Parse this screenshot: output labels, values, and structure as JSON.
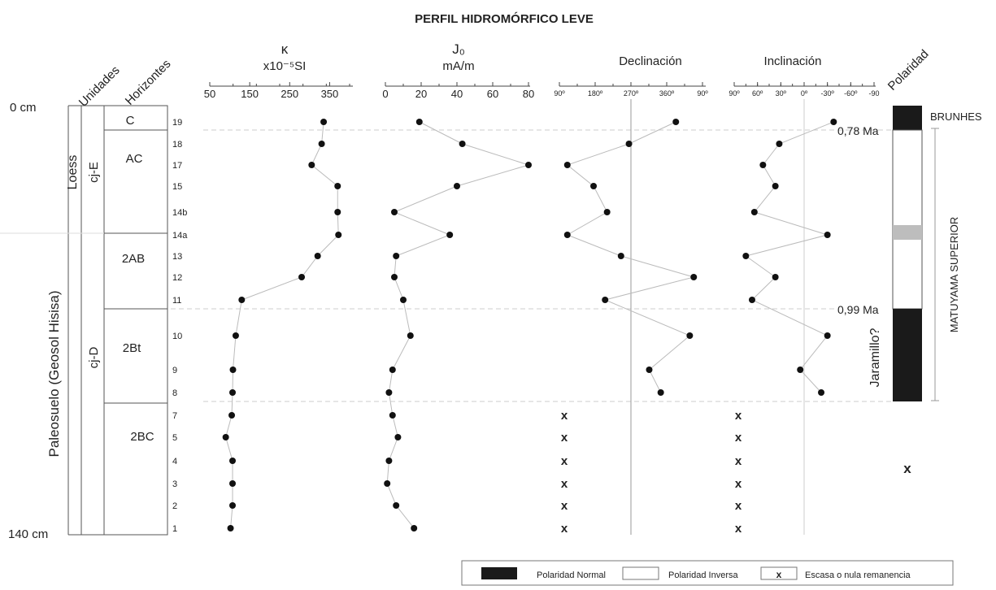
{
  "title": "PERFIL HIDROMÓRFICO LEVE",
  "column_headers": {
    "unidades": "Unidades",
    "horizontes": "Horizontes",
    "polaridad": "Polaridad"
  },
  "depth_labels": [
    "0 cm",
    "140 cm"
  ],
  "units": [
    {
      "name": "cj-E",
      "facies": "Loess"
    },
    {
      "name": "cj-D",
      "facies": "Paleosuelo (Geosol Hisisa)"
    }
  ],
  "horizons": [
    "C",
    "AC",
    "2AB",
    "2Bt",
    "2BC"
  ],
  "samples": [
    "19",
    "18",
    "17",
    "15",
    "14b",
    "14a",
    "13",
    "12",
    "11",
    "10",
    "9",
    "8",
    "7",
    "5",
    "4",
    "3",
    "2",
    "1"
  ],
  "polarity_labels": {
    "brunhes": "BRUNHES",
    "age_top": "0,78 Ma",
    "age_bottom": "0,99 Ma",
    "jaramillo": "Jaramillo?",
    "matuyama": "MATUYAMA SUPERIOR",
    "no_remanence_mark": "x"
  },
  "legend": {
    "normal": "Polaridad Normal",
    "inverse": "Polaridad Inversa",
    "mark": "x",
    "scarce": "Escasa o nula remanencia"
  },
  "colors": {
    "point": "#111111",
    "line": "#bbbbbb",
    "normal_polarity": "#1a1a1a",
    "transitional": "#bdbdbd",
    "dashed_boundary": "#cccccc"
  },
  "chart_data": [
    {
      "type": "line",
      "title_symbol": "κ",
      "title_unit": "x10⁻⁵SI",
      "tick_labels": [
        "50",
        "150",
        "250",
        "350"
      ],
      "xlim": [
        50,
        400
      ],
      "samples": [
        "19",
        "18",
        "17",
        "15",
        "14b",
        "14a",
        "13",
        "12",
        "11",
        "10",
        "9",
        "8",
        "7",
        "5",
        "4",
        "3",
        "2",
        "1"
      ],
      "values": [
        335,
        330,
        305,
        370,
        370,
        372,
        320,
        280,
        130,
        115,
        108,
        107,
        105,
        90,
        107,
        107,
        107,
        102
      ]
    },
    {
      "type": "line",
      "title_symbol": "J₀",
      "title_unit": "mA/m",
      "tick_labels": [
        "0",
        "20",
        "40",
        "60",
        "80"
      ],
      "xlim": [
        0,
        80
      ],
      "samples": [
        "19",
        "18",
        "17",
        "15",
        "14b",
        "14a",
        "13",
        "12",
        "11",
        "10",
        "9",
        "8",
        "7",
        "5",
        "4",
        "3",
        "2",
        "1"
      ],
      "values": [
        19,
        43,
        80,
        40,
        5,
        36,
        6,
        5,
        10,
        14,
        4,
        2,
        4,
        7,
        2,
        1,
        6,
        16
      ]
    },
    {
      "type": "scatter",
      "title": "Declinación",
      "tick_labels": [
        "90º",
        "180º",
        "270º",
        "360º",
        "90º"
      ],
      "xlim": [
        90,
        450
      ],
      "reference_line": 270,
      "samples": [
        "19",
        "18",
        "17",
        "15",
        "14b",
        "14a",
        "13",
        "12",
        "11",
        "10",
        "9",
        "8"
      ],
      "values": [
        383,
        265,
        110,
        176,
        210,
        110,
        245,
        428,
        205,
        418,
        316,
        345
      ],
      "no_data_mark": "x",
      "no_data_samples": [
        "7",
        "5",
        "4",
        "3",
        "2",
        "1"
      ]
    },
    {
      "type": "scatter",
      "title": "Inclinación",
      "tick_labels": [
        "90º",
        "60º",
        "30º",
        "0º",
        "-30º",
        "-60º",
        "-90"
      ],
      "xlim": [
        90,
        -90
      ],
      "reference_line": 0,
      "samples": [
        "19",
        "18",
        "17",
        "15",
        "14b",
        "14a",
        "13",
        "12",
        "11",
        "10",
        "9",
        "8"
      ],
      "values": [
        -38,
        32,
        53,
        37,
        64,
        -30,
        75,
        37,
        67,
        -30,
        5,
        -22
      ],
      "no_data_mark": "x",
      "no_data_samples": [
        "7",
        "5",
        "4",
        "3",
        "2",
        "1"
      ]
    }
  ]
}
